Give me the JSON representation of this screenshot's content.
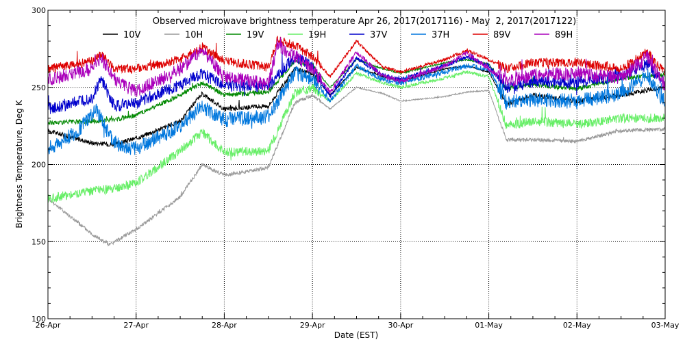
{
  "chart_data": {
    "type": "line",
    "title": "Observed microwave brightness temperature Apr 26, 2017(2017116) - May  2, 2017(2017122)",
    "xlabel": "Date (EST)",
    "ylabel": "Brightness Temperature, Deg K",
    "ylim": [
      100,
      300
    ],
    "yticks": [
      100,
      150,
      200,
      250,
      300
    ],
    "xlim": [
      0,
      7
    ],
    "xticks": [
      {
        "x": 0,
        "label": "26-Apr"
      },
      {
        "x": 1,
        "label": "27-Apr"
      },
      {
        "x": 2,
        "label": "28-Apr"
      },
      {
        "x": 3,
        "label": "29-Apr"
      },
      {
        "x": 4,
        "label": "30-Apr"
      },
      {
        "x": 5,
        "label": "01-May"
      },
      {
        "x": 6,
        "label": "02-May"
      },
      {
        "x": 7,
        "label": "03-May"
      }
    ],
    "grid": "dotted",
    "legend": "top",
    "series": [
      {
        "name": "10V",
        "color": "#000000",
        "x": [
          0,
          0.5,
          0.75,
          1,
          1.5,
          1.75,
          2,
          2.5,
          2.8,
          3,
          3.2,
          3.5,
          3.8,
          4,
          4.5,
          4.75,
          5,
          5.2,
          5.5,
          6,
          6.5,
          7
        ],
        "y": [
          222,
          214,
          213,
          217,
          228,
          246,
          236,
          238,
          262,
          259,
          245,
          263,
          257,
          254,
          262,
          264,
          260,
          239,
          245,
          241,
          245,
          250
        ]
      },
      {
        "name": "10H",
        "color": "#999999",
        "x": [
          0,
          0.5,
          0.7,
          1,
          1.5,
          1.75,
          2,
          2.5,
          2.8,
          3,
          3.2,
          3.5,
          3.8,
          4,
          4.5,
          4.75,
          5,
          5.2,
          5.5,
          6,
          6.5,
          7
        ],
        "y": [
          178,
          155,
          148,
          158,
          179,
          200,
          193,
          198,
          240,
          245,
          236,
          250,
          246,
          241,
          244,
          247,
          248,
          216,
          216,
          215,
          222,
          223
        ]
      },
      {
        "name": "19V",
        "color": "#008800",
        "x": [
          0,
          0.5,
          0.75,
          1,
          1.5,
          1.75,
          2,
          2.5,
          2.8,
          3,
          3.2,
          3.5,
          3.8,
          4,
          4.5,
          4.75,
          5,
          5.2,
          5.5,
          6,
          6.5,
          7
        ],
        "y": [
          227,
          228,
          229,
          232,
          245,
          253,
          245,
          247,
          267,
          264,
          250,
          268,
          262,
          259,
          266,
          268,
          265,
          249,
          252,
          249,
          256,
          258
        ]
      },
      {
        "name": "19H",
        "color": "#66ee66",
        "x": [
          0,
          0.5,
          0.75,
          1,
          1.5,
          1.75,
          2,
          2.5,
          2.8,
          3,
          3.2,
          3.5,
          3.8,
          4,
          4.5,
          4.75,
          5,
          5.2,
          5.5,
          6,
          6.5,
          7
        ],
        "y": [
          178,
          183,
          184,
          188,
          209,
          221,
          208,
          209,
          246,
          250,
          241,
          259,
          253,
          250,
          256,
          260,
          257,
          225,
          228,
          226,
          230,
          230
        ]
      },
      {
        "name": "37V",
        "color": "#0000cc",
        "x": [
          0,
          0.5,
          0.6,
          0.75,
          1,
          1.5,
          1.75,
          2,
          2.5,
          2.8,
          3,
          3.2,
          3.5,
          3.8,
          4,
          4.5,
          4.75,
          5,
          5.2,
          5.5,
          6,
          6.5,
          6.8,
          7
        ],
        "y": [
          236,
          243,
          255,
          238,
          240,
          252,
          259,
          251,
          251,
          270,
          263,
          244,
          269,
          258,
          255,
          264,
          270,
          264,
          249,
          254,
          253,
          258,
          265,
          252
        ]
      },
      {
        "name": "37H",
        "color": "#0077dd",
        "x": [
          0,
          0.3,
          0.55,
          0.75,
          1,
          1.5,
          1.75,
          2,
          2.5,
          2.8,
          3,
          3.2,
          3.5,
          3.8,
          4,
          4.5,
          4.75,
          5,
          5.2,
          5.5,
          6,
          6.5,
          6.8,
          7
        ],
        "y": [
          210,
          220,
          235,
          214,
          210,
          225,
          238,
          229,
          231,
          259,
          256,
          241,
          264,
          255,
          253,
          260,
          264,
          262,
          240,
          242,
          241,
          246,
          258,
          240
        ]
      },
      {
        "name": "89V",
        "color": "#dd0000",
        "x": [
          0,
          0.5,
          0.6,
          0.75,
          1,
          1.5,
          1.75,
          2,
          2.5,
          2.6,
          2.8,
          3,
          3.2,
          3.5,
          3.8,
          4,
          4.5,
          4.75,
          5,
          5.2,
          5.5,
          6,
          6.5,
          6.8,
          7
        ],
        "y": [
          262,
          267,
          272,
          262,
          262,
          268,
          276,
          267,
          263,
          281,
          277,
          270,
          257,
          280,
          263,
          260,
          268,
          274,
          268,
          262,
          266,
          266,
          262,
          273,
          259
        ]
      },
      {
        "name": "89H",
        "color": "#aa00bb",
        "x": [
          0,
          0.5,
          0.6,
          0.75,
          1,
          1.5,
          1.75,
          2,
          2.5,
          2.6,
          2.8,
          3,
          3.2,
          3.5,
          3.8,
          4,
          4.5,
          4.75,
          5,
          5.2,
          5.5,
          6,
          6.5,
          6.8,
          7
        ],
        "y": [
          255,
          262,
          270,
          255,
          247,
          262,
          275,
          257,
          252,
          277,
          270,
          262,
          247,
          273,
          257,
          254,
          264,
          272,
          262,
          254,
          258,
          259,
          256,
          270,
          251
        ]
      }
    ]
  }
}
